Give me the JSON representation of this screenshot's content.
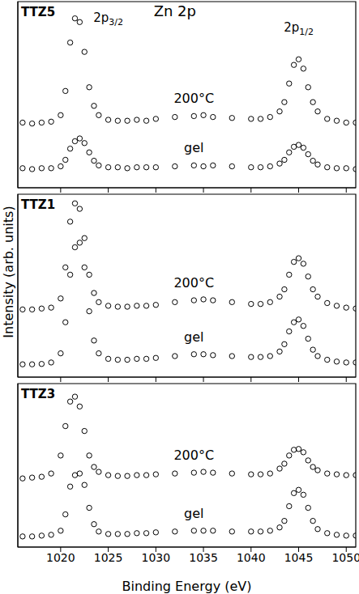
{
  "chart_data": [
    {
      "type": "scatter",
      "title": "TTZ5",
      "annotations": [
        {
          "text": "Zn 2p",
          "x": 1032,
          "y": 9.2
        },
        {
          "text": "2p3/2",
          "x": 1025,
          "y": 8.9
        },
        {
          "text": "2p1/2",
          "x": 1045,
          "y": 8.4
        }
      ],
      "x": [
        1016,
        1017,
        1018,
        1019,
        1020,
        1020.5,
        1021,
        1021.5,
        1022,
        1022.5,
        1023,
        1023.5,
        1024,
        1025,
        1026,
        1027,
        1028,
        1029,
        1030,
        1032,
        1034,
        1035,
        1036,
        1038,
        1040,
        1041,
        1042,
        1043,
        1043.5,
        1044,
        1044.5,
        1045,
        1045.5,
        1046,
        1046.5,
        1047,
        1048,
        1049,
        1050,
        1051
      ],
      "series": [
        {
          "name": "200°C",
          "color": "#000000",
          "marker": "open_circle",
          "values": [
            3.5,
            3.45,
            3.5,
            3.55,
            3.9,
            5.2,
            7.8,
            9.1,
            8.9,
            7.3,
            5.4,
            4.4,
            3.9,
            3.65,
            3.6,
            3.6,
            3.65,
            3.6,
            3.7,
            3.8,
            3.85,
            3.9,
            3.8,
            3.75,
            3.7,
            3.7,
            3.8,
            4.1,
            4.6,
            5.6,
            6.6,
            6.9,
            6.4,
            5.4,
            4.6,
            4.1,
            3.7,
            3.6,
            3.5,
            3.5
          ]
        },
        {
          "name": "gel",
          "color": "#000000",
          "marker": "open_circle",
          "values": [
            1.05,
            1.0,
            1.05,
            1.05,
            1.15,
            1.5,
            2.1,
            2.5,
            2.65,
            2.4,
            1.9,
            1.45,
            1.2,
            1.1,
            1.1,
            1.05,
            1.1,
            1.1,
            1.1,
            1.15,
            1.2,
            1.15,
            1.2,
            1.15,
            1.1,
            1.1,
            1.15,
            1.3,
            1.5,
            1.9,
            2.2,
            2.3,
            2.15,
            1.8,
            1.45,
            1.25,
            1.1,
            1.05,
            1.05,
            1.0
          ]
        }
      ],
      "xlim": [
        1015.5,
        1051
      ],
      "xticks": [
        1020,
        1025,
        1030,
        1035,
        1040,
        1045,
        1050
      ],
      "ylim": [
        0,
        10
      ],
      "grid": false,
      "tick_labels": false
    },
    {
      "type": "scatter",
      "title": "TTZ1",
      "ylabel": "Intensity (arb. units)",
      "x": [
        1016,
        1017,
        1018,
        1019,
        1020,
        1020.5,
        1021,
        1021.5,
        1022,
        1022.5,
        1023,
        1023.5,
        1024,
        1025,
        1026,
        1027,
        1028,
        1029,
        1030,
        1032,
        1034,
        1035,
        1036,
        1038,
        1040,
        1041,
        1042,
        1043,
        1043.5,
        1044,
        1044.5,
        1045,
        1045.5,
        1046,
        1046.5,
        1047,
        1048,
        1049,
        1050,
        1051
      ],
      "series": [
        {
          "name": "200°C",
          "color": "#000000",
          "marker": "open_circle",
          "values": [
            3.7,
            3.7,
            3.75,
            3.8,
            4.3,
            6.0,
            8.5,
            9.5,
            9.2,
            7.6,
            5.6,
            4.6,
            4.1,
            3.9,
            3.85,
            3.85,
            3.9,
            3.9,
            3.95,
            4.1,
            4.2,
            4.25,
            4.2,
            4.1,
            4.0,
            4.0,
            4.1,
            4.4,
            4.8,
            5.6,
            6.3,
            6.5,
            6.2,
            5.5,
            4.8,
            4.4,
            4.05,
            3.9,
            3.8,
            3.75
          ]
        },
        {
          "name": "gel",
          "color": "#000000",
          "marker": "open_circle",
          "values": [
            0.7,
            0.7,
            0.72,
            0.8,
            1.3,
            3.0,
            5.6,
            7.1,
            7.35,
            6.0,
            3.6,
            2.0,
            1.3,
            1.0,
            0.95,
            0.95,
            1.0,
            1.0,
            1.05,
            1.15,
            1.25,
            1.25,
            1.2,
            1.15,
            1.1,
            1.1,
            1.15,
            1.4,
            1.8,
            2.5,
            3.0,
            3.15,
            2.8,
            2.1,
            1.5,
            1.15,
            0.95,
            0.85,
            0.8,
            0.8
          ]
        }
      ],
      "xlim": [
        1015.5,
        1051
      ],
      "xticks": [
        1020,
        1025,
        1030,
        1035,
        1040,
        1045,
        1050
      ],
      "ylim": [
        0,
        10
      ],
      "grid": false,
      "tick_labels": false
    },
    {
      "type": "scatter",
      "title": "TTZ3",
      "xlabel": "Binding Energy (eV)",
      "x": [
        1016,
        1017,
        1018,
        1019,
        1020,
        1020.5,
        1021,
        1021.5,
        1022,
        1022.5,
        1023,
        1023.5,
        1024,
        1025,
        1026,
        1027,
        1028,
        1029,
        1030,
        1032,
        1034,
        1035,
        1036,
        1038,
        1040,
        1041,
        1042,
        1043,
        1043.5,
        1044,
        1044.5,
        1045,
        1045.5,
        1046,
        1046.5,
        1047,
        1048,
        1049,
        1050,
        1051
      ],
      "series": [
        {
          "name": "200°C",
          "color": "#000000",
          "marker": "open_circle",
          "values": [
            4.2,
            4.25,
            4.3,
            4.5,
            5.6,
            7.4,
            8.9,
            9.2,
            8.6,
            7.1,
            5.6,
            4.9,
            4.6,
            4.4,
            4.35,
            4.35,
            4.4,
            4.4,
            4.45,
            4.5,
            4.55,
            4.6,
            4.55,
            4.5,
            4.45,
            4.45,
            4.5,
            4.8,
            5.1,
            5.6,
            5.95,
            6.0,
            5.8,
            5.3,
            4.9,
            4.7,
            4.5,
            4.45,
            4.4,
            4.4
          ]
        },
        {
          "name": "gel",
          "color": "#000000",
          "marker": "open_circle",
          "values": [
            0.65,
            0.65,
            0.7,
            0.75,
            1.0,
            2.0,
            3.7,
            4.4,
            4.5,
            3.8,
            2.4,
            1.4,
            0.95,
            0.8,
            0.8,
            0.8,
            0.85,
            0.85,
            0.9,
            0.95,
            1.0,
            1.0,
            1.0,
            0.95,
            0.95,
            0.95,
            1.0,
            1.2,
            1.6,
            2.5,
            3.3,
            3.5,
            3.2,
            2.4,
            1.6,
            1.1,
            0.85,
            0.75,
            0.7,
            0.7
          ]
        }
      ],
      "xlim": [
        1015.5,
        1051
      ],
      "xticks": [
        1020,
        1025,
        1030,
        1035,
        1040,
        1045,
        1050
      ],
      "ylim": [
        0,
        10
      ],
      "grid": false,
      "tick_labels": "x"
    }
  ]
}
